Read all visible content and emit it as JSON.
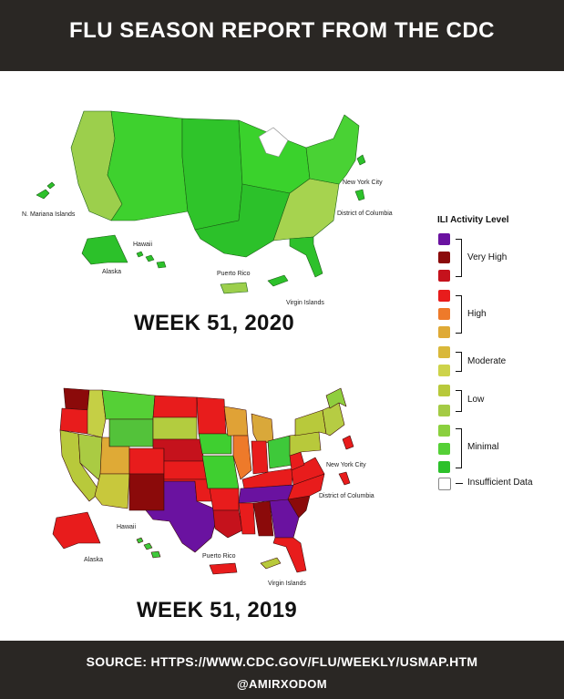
{
  "header": {
    "title": "FLU SEASON REPORT FROM THE CDC"
  },
  "maps": [
    {
      "week_label": "WEEK 51,  2020",
      "labels": {
        "n_mariana": "N. Mariana Islands",
        "hawaii": "Hawaii",
        "alaska": "Alaska",
        "puerto_rico": "Puerto Rico",
        "virgin_islands": "Virgin Islands",
        "nyc": "New York City",
        "dc": "District of Columbia"
      },
      "colors": {
        "west": "#9ccf4c",
        "mountain": "#3ed12e",
        "plains": "#2fc42a",
        "midwest": "#3ad22c",
        "south": "#2cc12a",
        "southeast": "#a6d34f",
        "northeast": "#49d234",
        "florida": "#2ec12b",
        "alaska": "#2cc12a",
        "hawaii": "#2cc12a",
        "pr": "#9ccf4c",
        "vi": "#2cc12a",
        "nyc": "#2cc12a",
        "dc": "#2cc12a",
        "mariana": "#2cc12a",
        "lakes": "#ffffff"
      }
    },
    {
      "week_label": "WEEK 51,  2019",
      "labels": {
        "hawaii": "Hawaii",
        "alaska": "Alaska",
        "puerto_rico": "Puerto Rico",
        "virgin_islands": "Virgin Islands",
        "nyc": "New York City",
        "dc": "District of Columbia"
      },
      "colors": {
        "washington": "#8b0a0a",
        "oregon": "#e81c1c",
        "california": "#b8c93b",
        "nevada": "#aacb43",
        "idaho": "#c5cf45",
        "montana": "#55d036",
        "wyoming": "#53c23a",
        "utah": "#dfaa36",
        "colorado": "#e81c1c",
        "arizona": "#c8c83c",
        "new_mexico": "#8b0a0a",
        "texas": "#6a12a0",
        "north_dakota": "#e81c1c",
        "south_dakota": "#b3cc3f",
        "nebraska": "#c5121c",
        "kansas": "#e81c1c",
        "oklahoma": "#e81c1c",
        "minnesota": "#e81c1c",
        "iowa": "#3fcf30",
        "missouri": "#3fcf30",
        "arkansas": "#e81c1c",
        "louisiana": "#c5121c",
        "wisconsin": "#e0a236",
        "illinois": "#ee7a2a",
        "michigan": "#d9a83a",
        "indiana": "#e81c1c",
        "ohio": "#3ec93a",
        "kentucky": "#e81c1c",
        "tennessee": "#6a12a0",
        "mississippi": "#e81c1c",
        "alabama": "#8b0a0a",
        "georgia": "#6a12a0",
        "south_carolina": "#8b0a0a",
        "north_carolina": "#e81c1c",
        "virginia": "#e81c1c",
        "west_virginia": "#e81c1c",
        "pennsylvania": "#b8c93b",
        "new_york": "#b8c93b",
        "new_england": "#b6cc43",
        "maine": "#8fce3e",
        "florida": "#e81c1c",
        "alaska": "#e81c1c",
        "hawaii": "#3ec93a",
        "pr": "#e81c1c",
        "vi": "#b8c93b",
        "nyc": "#e81c1c",
        "dc": "#e81c1c",
        "lakes": "#ffffff"
      }
    }
  ],
  "legend": {
    "title": "ILI Activity Level",
    "levels": [
      {
        "color": "#6a12a0"
      },
      {
        "color": "#8b0a0a"
      },
      {
        "color": "#c5121c"
      },
      {
        "color": "#e81c1c"
      },
      {
        "color": "#ee7a2a"
      },
      {
        "color": "#dfaa36"
      },
      {
        "color": "#d9b83a"
      },
      {
        "color": "#cdd34a"
      },
      {
        "color": "#b8c93b"
      },
      {
        "color": "#a4cb45"
      },
      {
        "color": "#8bd03e"
      },
      {
        "color": "#55d036"
      },
      {
        "color": "#2cc12a"
      },
      {
        "color": "#ffffff"
      }
    ],
    "groups": [
      {
        "label": "Very High"
      },
      {
        "label": "High"
      },
      {
        "label": "Moderate"
      },
      {
        "label": "Low"
      },
      {
        "label": "Minimal"
      }
    ],
    "insufficient_label": "Insufficient Data"
  },
  "footer": {
    "source": "SOURCE: HTTPS://WWW.CDC.GOV/FLU/WEEKLY/USMAP.HTM",
    "handle": "@AMIRXODOM"
  }
}
